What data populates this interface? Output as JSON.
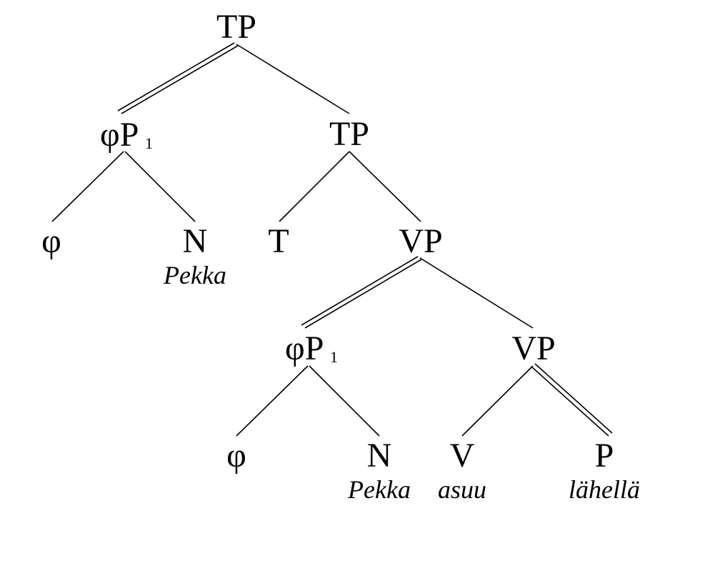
{
  "nodes": {
    "root_tp": "TP",
    "phip1_upper_head": "φP",
    "phip1_upper_sub": "1",
    "tp_inner": "TP",
    "phi_upper": "φ",
    "n_upper": "N",
    "n_upper_word": "Pekka",
    "t_head": "T",
    "vp_upper": "VP",
    "phip1_lower_head": "φP",
    "phip1_lower_sub": "1",
    "vp_lower": "VP",
    "phi_lower": "φ",
    "n_lower": "N",
    "n_lower_word": "Pekka",
    "v_head": "V",
    "v_word": "asuu",
    "p_head": "P",
    "p_word": "lähellä"
  },
  "edges": [
    {
      "from": "root_tp",
      "to": "phip1_upper",
      "style": "double"
    },
    {
      "from": "root_tp",
      "to": "tp_inner",
      "style": "single"
    },
    {
      "from": "phip1_upper",
      "to": "phi_upper",
      "style": "single"
    },
    {
      "from": "phip1_upper",
      "to": "n_upper",
      "style": "single"
    },
    {
      "from": "tp_inner",
      "to": "t_head",
      "style": "single"
    },
    {
      "from": "tp_inner",
      "to": "vp_upper",
      "style": "single"
    },
    {
      "from": "vp_upper",
      "to": "phip1_lower",
      "style": "double"
    },
    {
      "from": "vp_upper",
      "to": "vp_lower",
      "style": "single"
    },
    {
      "from": "phip1_lower",
      "to": "phi_lower",
      "style": "single"
    },
    {
      "from": "phip1_lower",
      "to": "n_lower",
      "style": "single"
    },
    {
      "from": "vp_lower",
      "to": "v_head",
      "style": "single"
    },
    {
      "from": "vp_lower",
      "to": "p_head",
      "style": "double"
    }
  ]
}
